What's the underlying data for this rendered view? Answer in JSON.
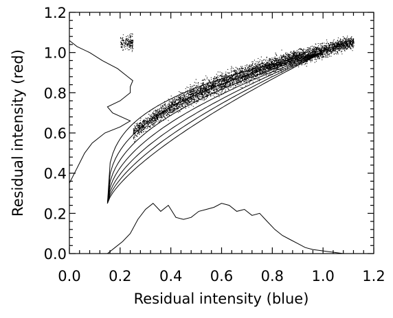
{
  "chart_data": {
    "type": "scatter",
    "title": "",
    "xlabel": "Residual intensity (blue)",
    "ylabel": "Residual intensity (red)",
    "xlim": [
      0.0,
      1.2
    ],
    "ylim": [
      0.0,
      1.2
    ],
    "x_ticks": [
      "0.0",
      "0.2",
      "0.4",
      "0.6",
      "0.8",
      "1.0",
      "1.2"
    ],
    "y_ticks": [
      "0.0",
      "0.2",
      "0.4",
      "0.6",
      "0.8",
      "1.0",
      "1.2"
    ],
    "grid": false,
    "legend": "none",
    "scatter_trend": [
      {
        "x": 0.25,
        "y": 0.6
      },
      {
        "x": 0.3,
        "y": 0.65
      },
      {
        "x": 0.4,
        "y": 0.73
      },
      {
        "x": 0.5,
        "y": 0.8
      },
      {
        "x": 0.6,
        "y": 0.85
      },
      {
        "x": 0.7,
        "y": 0.9
      },
      {
        "x": 0.8,
        "y": 0.94
      },
      {
        "x": 0.9,
        "y": 0.98
      },
      {
        "x": 1.0,
        "y": 1.01
      },
      {
        "x": 1.1,
        "y": 1.05
      }
    ],
    "model_curves": {
      "start": {
        "x": 0.15,
        "y": 0.25
      },
      "end": {
        "x": 1.0,
        "y": 1.0
      },
      "exponents": [
        0.3,
        0.37,
        0.44,
        0.51,
        0.58,
        0.65,
        0.72
      ]
    },
    "hist_blue": {
      "x": [
        0.15,
        0.18,
        0.21,
        0.24,
        0.27,
        0.3,
        0.33,
        0.36,
        0.39,
        0.42,
        0.45,
        0.48,
        0.51,
        0.54,
        0.57,
        0.6,
        0.63,
        0.66,
        0.69,
        0.72,
        0.75,
        0.78,
        0.81,
        0.84,
        0.87,
        0.9,
        0.93,
        0.96,
        0.99,
        1.02,
        1.05,
        1.08
      ],
      "y": [
        0.0,
        0.03,
        0.06,
        0.1,
        0.17,
        0.22,
        0.25,
        0.21,
        0.24,
        0.18,
        0.17,
        0.18,
        0.21,
        0.22,
        0.23,
        0.25,
        0.24,
        0.21,
        0.22,
        0.19,
        0.2,
        0.16,
        0.12,
        0.09,
        0.07,
        0.05,
        0.03,
        0.02,
        0.015,
        0.01,
        0.005,
        0.0
      ]
    },
    "hist_red": {
      "y": [
        0.35,
        0.4,
        0.45,
        0.5,
        0.55,
        0.6,
        0.63,
        0.66,
        0.7,
        0.73,
        0.76,
        0.8,
        0.83,
        0.86,
        0.88,
        0.92,
        0.96,
        1.0,
        1.03,
        1.06
      ],
      "x": [
        0.0,
        0.02,
        0.04,
        0.06,
        0.09,
        0.14,
        0.2,
        0.24,
        0.17,
        0.15,
        0.2,
        0.24,
        0.24,
        0.25,
        0.23,
        0.19,
        0.13,
        0.08,
        0.03,
        0.0
      ]
    }
  }
}
